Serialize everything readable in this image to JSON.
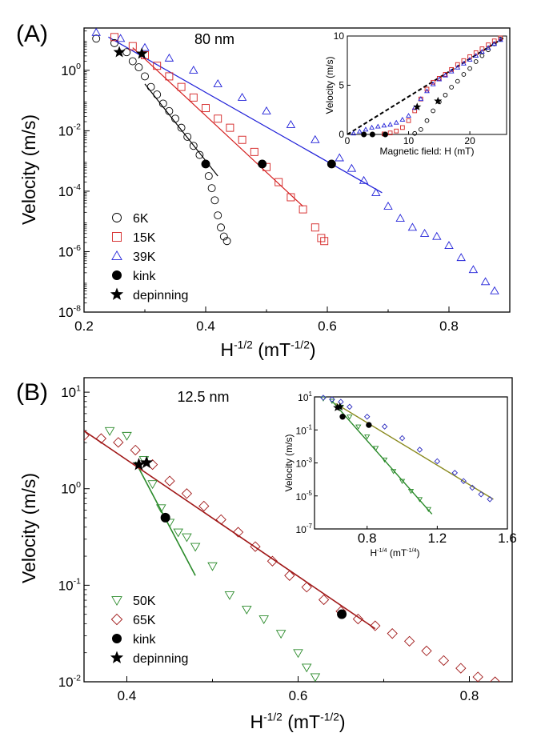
{
  "chart_data": [
    {
      "type": "scatter",
      "panel_label": "(A)",
      "annotation": "80 nm",
      "xlabel": "H",
      "xlabel_sup": "-1/2",
      "xlabel_unit": " (mT",
      "xlabel_unit_sup": "-1/2",
      "xlabel_close": ")",
      "ylabel": "Velocity (m/s)",
      "xlim": [
        0.2,
        0.9
      ],
      "ylim_log": [
        -8,
        1.4
      ],
      "x_ticks": [
        "0.2",
        "0.4",
        "0.6",
        "0.8"
      ],
      "x_tick_values": [
        0.2,
        0.4,
        0.6,
        0.8
      ],
      "y_ticks": [
        {
          "base": "10",
          "exp": "0",
          "value": 0
        },
        {
          "base": "10",
          "exp": "-2",
          "value": -2
        },
        {
          "base": "10",
          "exp": "-4",
          "value": -4
        },
        {
          "base": "10",
          "exp": "-6",
          "value": -6
        },
        {
          "base": "10",
          "exp": "-8",
          "value": -8
        }
      ],
      "legend": [
        {
          "label": "6K",
          "marker": "circle",
          "color": "#000000",
          "filled": false
        },
        {
          "label": "15K",
          "marker": "square",
          "color": "#d42020",
          "filled": false
        },
        {
          "label": "39K",
          "marker": "triangle",
          "color": "#2020d8",
          "filled": false
        },
        {
          "label": "kink",
          "marker": "circle",
          "color": "#000000",
          "filled": true
        },
        {
          "label": "depinning",
          "marker": "star",
          "color": "#000000",
          "filled": true
        }
      ],
      "series": [
        {
          "name": "6K",
          "color": "#000000",
          "marker": "circle",
          "x": [
            0.22,
            0.25,
            0.27,
            0.28,
            0.29,
            0.3,
            0.31,
            0.32,
            0.33,
            0.34,
            0.35,
            0.36,
            0.37,
            0.38,
            0.39,
            0.4,
            0.405,
            0.41,
            0.415,
            0.42,
            0.425,
            0.43,
            0.435
          ],
          "logy": [
            1.05,
            0.9,
            0.6,
            0.3,
            0.1,
            -0.2,
            -0.55,
            -0.8,
            -1.1,
            -1.35,
            -1.6,
            -1.9,
            -2.2,
            -2.5,
            -2.8,
            -3.1,
            -3.5,
            -3.9,
            -4.3,
            -4.8,
            -5.2,
            -5.5,
            -5.65
          ]
        },
        {
          "name": "15K",
          "color": "#d42020",
          "marker": "square",
          "x": [
            0.25,
            0.28,
            0.3,
            0.32,
            0.34,
            0.36,
            0.38,
            0.4,
            0.42,
            0.44,
            0.46,
            0.48,
            0.5,
            0.52,
            0.54,
            0.56,
            0.58,
            0.59,
            0.595
          ],
          "logy": [
            1.1,
            0.8,
            0.5,
            0.15,
            -0.2,
            -0.55,
            -0.9,
            -1.25,
            -1.6,
            -1.9,
            -2.3,
            -2.7,
            -3.2,
            -3.7,
            -4.2,
            -4.6,
            -5.2,
            -5.55,
            -5.65
          ]
        },
        {
          "name": "39K",
          "color": "#2020d8",
          "marker": "triangle",
          "x": [
            0.22,
            0.26,
            0.3,
            0.34,
            0.38,
            0.42,
            0.46,
            0.5,
            0.54,
            0.58,
            0.62,
            0.64,
            0.66,
            0.68,
            0.7,
            0.72,
            0.74,
            0.76,
            0.78,
            0.8,
            0.82,
            0.84,
            0.86,
            0.875
          ],
          "logy": [
            1.25,
            1.05,
            0.75,
            0.4,
            0.0,
            -0.45,
            -0.9,
            -1.35,
            -1.8,
            -2.3,
            -2.9,
            -3.25,
            -3.65,
            -4.05,
            -4.5,
            -4.9,
            -5.2,
            -5.4,
            -5.5,
            -5.8,
            -6.2,
            -6.6,
            -7.0,
            -7.3
          ]
        },
        {
          "name": "kink",
          "color": "#000000",
          "marker": "filled-circle",
          "x": [
            0.4,
            0.493,
            0.607
          ],
          "logy": [
            -3.1,
            -3.1,
            -3.1
          ]
        },
        {
          "name": "depinning",
          "color": "#000000",
          "marker": "star",
          "x": [
            0.258,
            0.295
          ],
          "logy": [
            0.6,
            0.55
          ]
        }
      ],
      "fit_lines": [
        {
          "color": "#000000",
          "x": [
            0.3,
            0.42
          ],
          "logy": [
            -0.45,
            -3.5
          ]
        },
        {
          "color": "#d42020",
          "x": [
            0.28,
            0.56
          ],
          "logy": [
            0.75,
            -4.5
          ]
        },
        {
          "color": "#2020d8",
          "x": [
            0.24,
            0.69
          ],
          "logy": [
            1.1,
            -4.05
          ]
        }
      ],
      "inset": {
        "type": "scatter",
        "xlabel": "Magnetic field: H (mT)",
        "ylabel": "Velocity (m/s)",
        "xlim": [
          0,
          26
        ],
        "ylim": [
          0,
          10
        ],
        "x_ticks": [
          "0",
          "10",
          "20"
        ],
        "x_tick_values": [
          0,
          10,
          20
        ],
        "y_ticks": [
          "0",
          "5",
          "10"
        ],
        "y_tick_values": [
          0,
          5,
          10
        ],
        "series": [
          {
            "name": "6K",
            "color": "#000000",
            "marker": "circle",
            "x": [
              11,
              12,
              13,
              14,
              15,
              16,
              17,
              18,
              19,
              20,
              21,
              22,
              23,
              24,
              25
            ],
            "y": [
              0.1,
              0.5,
              1.4,
              2.4,
              3.3,
              4.0,
              4.8,
              5.4,
              6.1,
              6.7,
              7.4,
              8.0,
              8.6,
              9.2,
              9.7
            ]
          },
          {
            "name": "15K",
            "color": "#d42020",
            "marker": "square",
            "x": [
              6,
              7,
              8,
              9,
              10,
              11,
              12,
              13,
              14,
              15,
              16,
              17,
              18,
              19,
              20,
              21,
              22,
              23,
              24,
              25
            ],
            "y": [
              0.05,
              0.15,
              0.35,
              0.7,
              1.4,
              2.4,
              3.6,
              4.6,
              5.3,
              5.7,
              6.1,
              6.6,
              7.1,
              7.5,
              7.9,
              8.3,
              8.7,
              9.1,
              9.5,
              9.8
            ]
          },
          {
            "name": "39K",
            "color": "#2020d8",
            "marker": "triangle",
            "x": [
              1,
              2,
              3,
              4,
              5,
              6,
              7,
              8,
              9,
              10,
              11,
              12,
              13,
              14,
              15,
              16,
              17,
              18,
              19,
              20,
              21,
              22,
              23,
              24,
              25
            ],
            "y": [
              0.1,
              0.3,
              0.5,
              0.7,
              0.8,
              0.9,
              1.0,
              1.2,
              1.5,
              1.9,
              2.7,
              3.6,
              4.4,
              5.1,
              5.6,
              6.0,
              6.4,
              6.8,
              7.2,
              7.6,
              8.0,
              8.4,
              8.8,
              9.2,
              9.6
            ]
          },
          {
            "name": "kink",
            "color": "#000000",
            "marker": "filled-circle",
            "x": [
              6.2,
              4.1,
              2.7
            ],
            "y": [
              0.0,
              0.0,
              0.0
            ]
          },
          {
            "name": "depinning",
            "color": "#000000",
            "marker": "star",
            "x": [
              11.4,
              14.8
            ],
            "y": [
              2.8,
              3.4
            ]
          }
        ],
        "fit_line": {
          "x": [
            0,
            25.5
          ],
          "y": [
            0,
            9.8
          ],
          "style": "dashed"
        }
      }
    },
    {
      "type": "scatter",
      "panel_label": "(B)",
      "annotation": "12.5 nm",
      "xlabel": "H",
      "xlabel_sup": "-1/2",
      "xlabel_unit": " (mT",
      "xlabel_unit_sup": "-1/2",
      "xlabel_close": ")",
      "ylabel": "Velocity (m/s)",
      "xlim": [
        0.35,
        0.85
      ],
      "ylim_log": [
        -2,
        1.15
      ],
      "x_ticks": [
        "0.4",
        "0.6",
        "0.8"
      ],
      "x_tick_values": [
        0.4,
        0.6,
        0.8
      ],
      "y_ticks": [
        {
          "base": "10",
          "exp": "1",
          "value": 1
        },
        {
          "base": "10",
          "exp": "0",
          "value": 0
        },
        {
          "base": "10",
          "exp": "-1",
          "value": -1
        },
        {
          "base": "10",
          "exp": "-2",
          "value": -2
        }
      ],
      "legend": [
        {
          "label": "50K",
          "marker": "triangle-down",
          "color": "#2a8a2a",
          "filled": false
        },
        {
          "label": "65K",
          "marker": "diamond",
          "color": "#a01818",
          "filled": false
        },
        {
          "label": "kink",
          "marker": "circle",
          "color": "#000000",
          "filled": true
        },
        {
          "label": "depinning",
          "marker": "star",
          "color": "#000000",
          "filled": true
        }
      ],
      "series": [
        {
          "name": "50K",
          "color": "#2a8a2a",
          "marker": "triangle-down",
          "x": [
            0.38,
            0.4,
            0.42,
            0.43,
            0.44,
            0.45,
            0.46,
            0.47,
            0.48,
            0.5,
            0.52,
            0.54,
            0.56,
            0.58,
            0.6,
            0.61,
            0.62
          ],
          "logy": [
            0.6,
            0.55,
            0.3,
            0.05,
            -0.2,
            -0.35,
            -0.45,
            -0.5,
            -0.6,
            -0.8,
            -1.1,
            -1.25,
            -1.35,
            -1.5,
            -1.7,
            -1.85,
            -1.95
          ]
        },
        {
          "name": "65K",
          "color": "#a01818",
          "marker": "diamond",
          "x": [
            0.35,
            0.37,
            0.39,
            0.41,
            0.43,
            0.45,
            0.47,
            0.49,
            0.51,
            0.53,
            0.55,
            0.57,
            0.59,
            0.61,
            0.63,
            0.65,
            0.67,
            0.69,
            0.71,
            0.73,
            0.75,
            0.77,
            0.79,
            0.81,
            0.83
          ],
          "logy": [
            0.55,
            0.52,
            0.48,
            0.4,
            0.25,
            0.08,
            -0.05,
            -0.18,
            -0.32,
            -0.45,
            -0.6,
            -0.75,
            -0.9,
            -1.02,
            -1.15,
            -1.27,
            -1.35,
            -1.42,
            -1.5,
            -1.58,
            -1.68,
            -1.78,
            -1.86,
            -1.95,
            -2.0
          ]
        },
        {
          "name": "kink",
          "color": "#000000",
          "marker": "filled-circle",
          "x": [
            0.445,
            0.651
          ],
          "logy": [
            -0.3,
            -1.3
          ]
        },
        {
          "name": "depinning",
          "color": "#000000",
          "marker": "star",
          "x": [
            0.414,
            0.423
          ],
          "logy": [
            0.25,
            0.27
          ]
        }
      ],
      "fit_lines": [
        {
          "color": "#2a8a2a",
          "x": [
            0.41,
            0.48
          ],
          "logy": [
            0.28,
            -0.9
          ]
        },
        {
          "color": "#a01818",
          "x": [
            0.35,
            0.69
          ],
          "logy": [
            0.6,
            -1.45
          ]
        }
      ],
      "inset": {
        "type": "scatter",
        "xlabel": "H",
        "xlabel_sup": "-1/4",
        "xlabel_unit": " (mT",
        "xlabel_unit_sup": "-1/4",
        "xlabel_close": ")",
        "ylabel": "Velocity (m/s)",
        "xlim": [
          0.5,
          1.6
        ],
        "ylim_log": [
          -7,
          1
        ],
        "x_ticks": [
          "0.8",
          "1.2",
          "1.6"
        ],
        "x_tick_values": [
          0.8,
          1.2,
          1.6
        ],
        "y_ticks": [
          {
            "base": "10",
            "exp": "1",
            "value": 1
          },
          {
            "base": "10",
            "exp": "-1",
            "value": -1
          },
          {
            "base": "10",
            "exp": "-3",
            "value": -3
          },
          {
            "base": "10",
            "exp": "-5",
            "value": -5
          },
          {
            "base": "10",
            "exp": "-7",
            "value": -7
          }
        ],
        "series": [
          {
            "name": "50K",
            "color": "#2a8a2a",
            "marker": "triangle-down",
            "x": [
              0.55,
              0.6,
              0.65,
              0.7,
              0.75,
              0.8,
              0.85,
              0.9,
              0.95,
              1.0,
              1.05,
              1.1,
              1.15
            ],
            "logy": [
              0.9,
              0.75,
              0.4,
              -0.2,
              -0.8,
              -1.4,
              -2.1,
              -2.8,
              -3.5,
              -4.1,
              -4.7,
              -5.2,
              -5.8
            ]
          },
          {
            "name": "65K",
            "color": "#3030c0",
            "marker": "diamond",
            "x": [
              0.55,
              0.6,
              0.65,
              0.7,
              0.8,
              0.9,
              1.0,
              1.1,
              1.2,
              1.3,
              1.35,
              1.4,
              1.45,
              1.5
            ],
            "logy": [
              0.95,
              0.85,
              0.7,
              0.4,
              -0.2,
              -0.8,
              -1.5,
              -2.2,
              -2.9,
              -3.6,
              -4.1,
              -4.5,
              -4.9,
              -5.2
            ]
          },
          {
            "name": "kink",
            "color": "#000000",
            "marker": "filled-circle",
            "x": [
              0.66,
              0.81
            ],
            "logy": [
              -0.2,
              -0.7
            ]
          },
          {
            "name": "depinning",
            "color": "#000000",
            "marker": "star",
            "x": [
              0.63,
              0.645
            ],
            "logy": [
              0.35,
              0.4
            ]
          }
        ],
        "fit_lines": [
          {
            "color": "#2a8a2a",
            "x": [
              0.6,
              1.17
            ],
            "logy": [
              0.75,
              -6.1
            ]
          },
          {
            "color": "#8a8a20",
            "x": [
              0.62,
              1.52
            ],
            "logy": [
              0.6,
              -5.2
            ]
          }
        ]
      }
    }
  ]
}
